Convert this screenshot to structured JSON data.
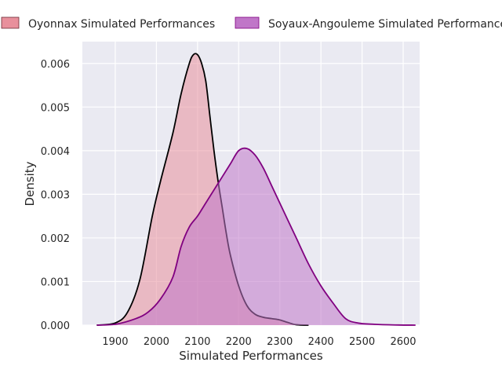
{
  "chart_data": {
    "type": "area",
    "title": "",
    "xlabel": "Simulated Performances",
    "ylabel": "Density",
    "xlim": [
      1820,
      2640
    ],
    "ylim": [
      0,
      0.0065
    ],
    "xticks": [
      1900,
      2000,
      2100,
      2200,
      2300,
      2400,
      2500,
      2600
    ],
    "xtick_labels": [
      "1900",
      "2000",
      "2100",
      "2200",
      "2300",
      "2400",
      "2500",
      "2600"
    ],
    "yticks": [
      0,
      0.001,
      0.002,
      0.003,
      0.004,
      0.005,
      0.006
    ],
    "ytick_labels": [
      "0.000",
      "0.001",
      "0.002",
      "0.003",
      "0.004",
      "0.005",
      "0.006"
    ],
    "grid": true,
    "legend_position": "top",
    "background": "#eaeaf2",
    "series": [
      {
        "name": "Oyonnax Simulated Performances",
        "fill": "#e8909c",
        "line": "#000000",
        "x": [
          1855,
          1900,
          1930,
          1960,
          1990,
          2010,
          2040,
          2060,
          2080,
          2090,
          2100,
          2110,
          2120,
          2130,
          2140,
          2150,
          2160,
          2170,
          2180,
          2200,
          2220,
          2240,
          2260,
          2280,
          2300,
          2320,
          2340,
          2370
        ],
        "y": [
          0,
          5e-05,
          0.0003,
          0.00105,
          0.0025,
          0.0033,
          0.0044,
          0.0053,
          0.006,
          0.0062,
          0.0062,
          0.006,
          0.0056,
          0.0048,
          0.004,
          0.0033,
          0.0027,
          0.0021,
          0.0016,
          0.0009,
          0.00045,
          0.00025,
          0.00018,
          0.00015,
          0.00012,
          6e-05,
          1e-05,
          0
        ]
      },
      {
        "name": "Soyaux-Angouleme Simulated Performances",
        "fill": "#c076c8",
        "line": "#800080",
        "x": [
          1855,
          1900,
          1950,
          1980,
          2010,
          2040,
          2060,
          2080,
          2100,
          2120,
          2140,
          2160,
          2180,
          2200,
          2220,
          2240,
          2260,
          2280,
          2300,
          2320,
          2340,
          2370,
          2400,
          2430,
          2460,
          2490,
          2530,
          2580,
          2630
        ],
        "y": [
          0,
          2e-05,
          0.00015,
          0.0003,
          0.0006,
          0.0011,
          0.0018,
          0.00225,
          0.0025,
          0.0028,
          0.0031,
          0.0034,
          0.0037,
          0.004,
          0.00405,
          0.0039,
          0.0036,
          0.0032,
          0.0028,
          0.0024,
          0.002,
          0.0014,
          0.0009,
          0.0005,
          0.00015,
          5e-05,
          2e-05,
          5e-06,
          0
        ]
      }
    ]
  }
}
